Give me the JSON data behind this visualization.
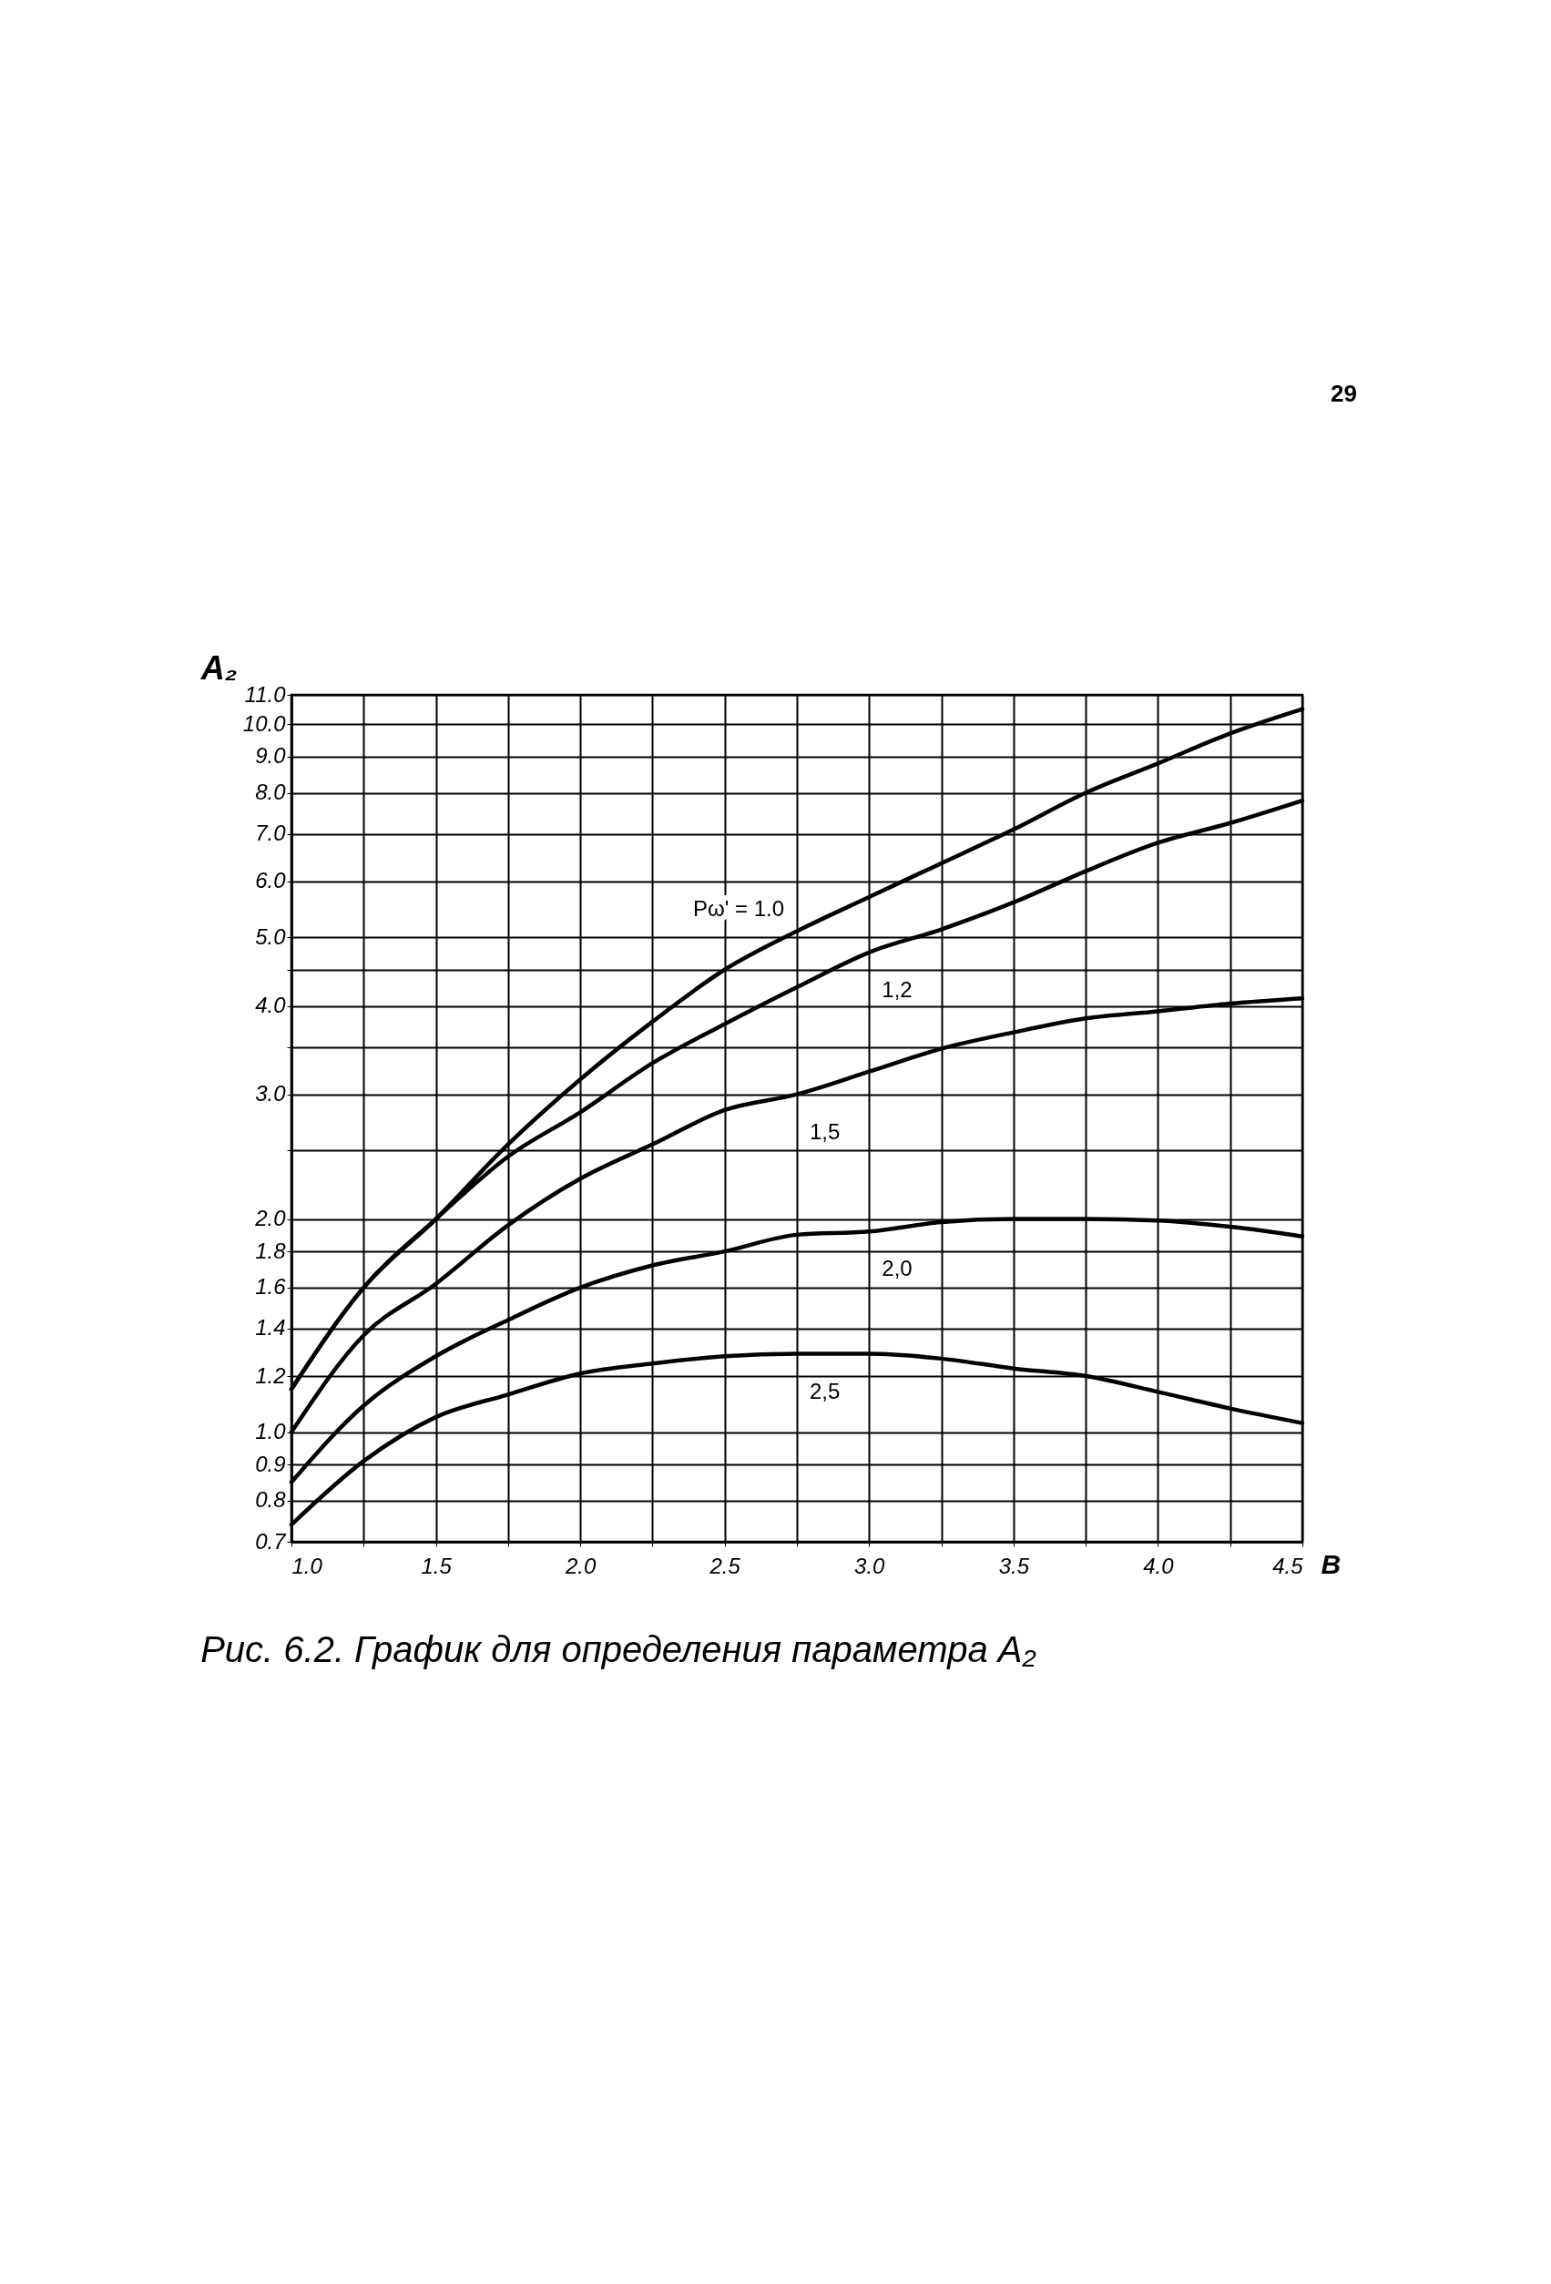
{
  "chart_data": {
    "type": "line",
    "title": "Рис. 6.2. График для определения параметра A₂",
    "xlabel": "B",
    "ylabel": "A₂",
    "annotations": [
      "29"
    ],
    "x": [
      1.0,
      1.25,
      1.5,
      1.75,
      2.0,
      2.25,
      2.5,
      2.75,
      3.0,
      3.25,
      3.5,
      3.75,
      4.0,
      4.25,
      4.5
    ],
    "series": [
      {
        "name": "Pω' = 1.0",
        "color": "#000000",
        "values": [
          1.15,
          1.6,
          2.0,
          2.55,
          3.15,
          3.8,
          4.5,
          5.1,
          5.7,
          6.36,
          7.1,
          8.0,
          8.8,
          9.7,
          10.5
        ]
      },
      {
        "name": "1,2",
        "color": "#000000",
        "values": [
          1.15,
          1.6,
          2.0,
          2.45,
          2.83,
          3.32,
          3.77,
          4.25,
          4.76,
          5.13,
          5.6,
          6.2,
          6.8,
          7.25,
          7.8
        ]
      },
      {
        "name": "1,5",
        "color": "#000000",
        "values": [
          1.0,
          1.37,
          1.62,
          1.96,
          2.28,
          2.55,
          2.85,
          3.0,
          3.23,
          3.48,
          3.67,
          3.84,
          3.93,
          4.03,
          4.1
        ]
      },
      {
        "name": "2,0",
        "color": "#000000",
        "values": [
          0.85,
          1.09,
          1.28,
          1.44,
          1.6,
          1.72,
          1.8,
          1.9,
          1.92,
          1.98,
          2.0,
          2.0,
          1.99,
          1.95,
          1.89
        ]
      },
      {
        "name": "2,5",
        "color": "#000000",
        "values": [
          0.74,
          0.91,
          1.05,
          1.13,
          1.21,
          1.25,
          1.28,
          1.29,
          1.29,
          1.27,
          1.23,
          1.2,
          1.14,
          1.08,
          1.03
        ]
      }
    ],
    "log": "y",
    "xlim": [
      1.0,
      4.5
    ],
    "ylim": [
      0.7,
      11.0
    ],
    "xticks": [
      {
        "value": 1,
        "label": "1.0"
      },
      {
        "value": 1.25,
        "label": null
      },
      1.5,
      {
        "value": 1.75,
        "label": null
      },
      {
        "value": 2,
        "label": "2.0"
      },
      {
        "value": 2.25,
        "label": null
      },
      2.5,
      {
        "value": 2.75,
        "label": null
      },
      {
        "value": 3,
        "label": "3.0"
      },
      {
        "value": 3.25,
        "label": null
      },
      3.5,
      {
        "value": 3.75,
        "label": null
      },
      {
        "value": 4,
        "label": "4.0"
      },
      {
        "value": 4.25,
        "label": null
      },
      4.5
    ],
    "yticks": [
      0.7,
      0.8,
      0.9,
      {
        "value": 1,
        "label": "1.0"
      },
      1.2,
      1.4,
      1.6,
      1.8,
      {
        "value": 2,
        "label": "2.0"
      },
      {
        "value": 2.5,
        "label": null
      },
      {
        "value": 3,
        "label": "3.0"
      },
      {
        "value": 3.5,
        "label": null
      },
      {
        "value": 4,
        "label": "4.0"
      },
      {
        "value": 4.5,
        "label": null
      },
      {
        "value": 5,
        "label": "5.0"
      },
      {
        "value": 6,
        "label": "6.0"
      },
      {
        "value": 7,
        "label": "7.0"
      },
      {
        "value": 8,
        "label": "8.0"
      },
      {
        "value": 9,
        "label": "9.0"
      },
      {
        "value": 10,
        "label": "10.0"
      },
      {
        "value": 11,
        "label": "11.0"
      }
    ],
    "grid": true,
    "legend": false,
    "marker": "none",
    "line_style": "solid"
  }
}
